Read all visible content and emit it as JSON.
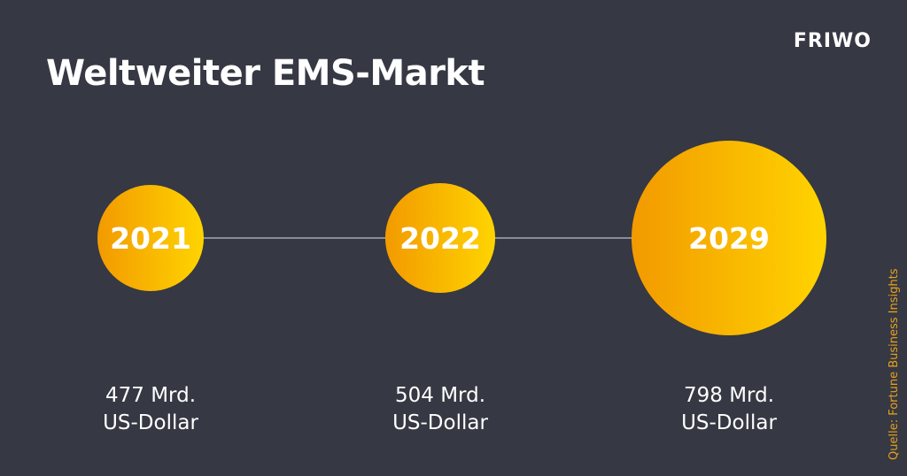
{
  "header": {
    "title": "Weltweiter EMS-Markt",
    "logo_text": "FRIWO"
  },
  "source_note": "Quelle: Fortune Business Insights",
  "colors": {
    "background": "#363843",
    "bubble_start": "#f29a00",
    "bubble_end": "#ffd400",
    "connector": "#8a8c96",
    "text": "#ffffff",
    "source_text": "#e8a21b"
  },
  "chart_data": {
    "type": "bubble",
    "title": "Weltweiter EMS-Markt",
    "unit": "Mrd. US-Dollar",
    "points": [
      {
        "year": "2021",
        "value": 477,
        "amount_label": "477 Mrd.",
        "unit_label": "US-Dollar"
      },
      {
        "year": "2022",
        "value": 504,
        "amount_label": "504 Mrd.",
        "unit_label": "US-Dollar"
      },
      {
        "year": "2029",
        "value": 798,
        "amount_label": "798 Mrd.",
        "unit_label": "US-Dollar"
      }
    ]
  }
}
